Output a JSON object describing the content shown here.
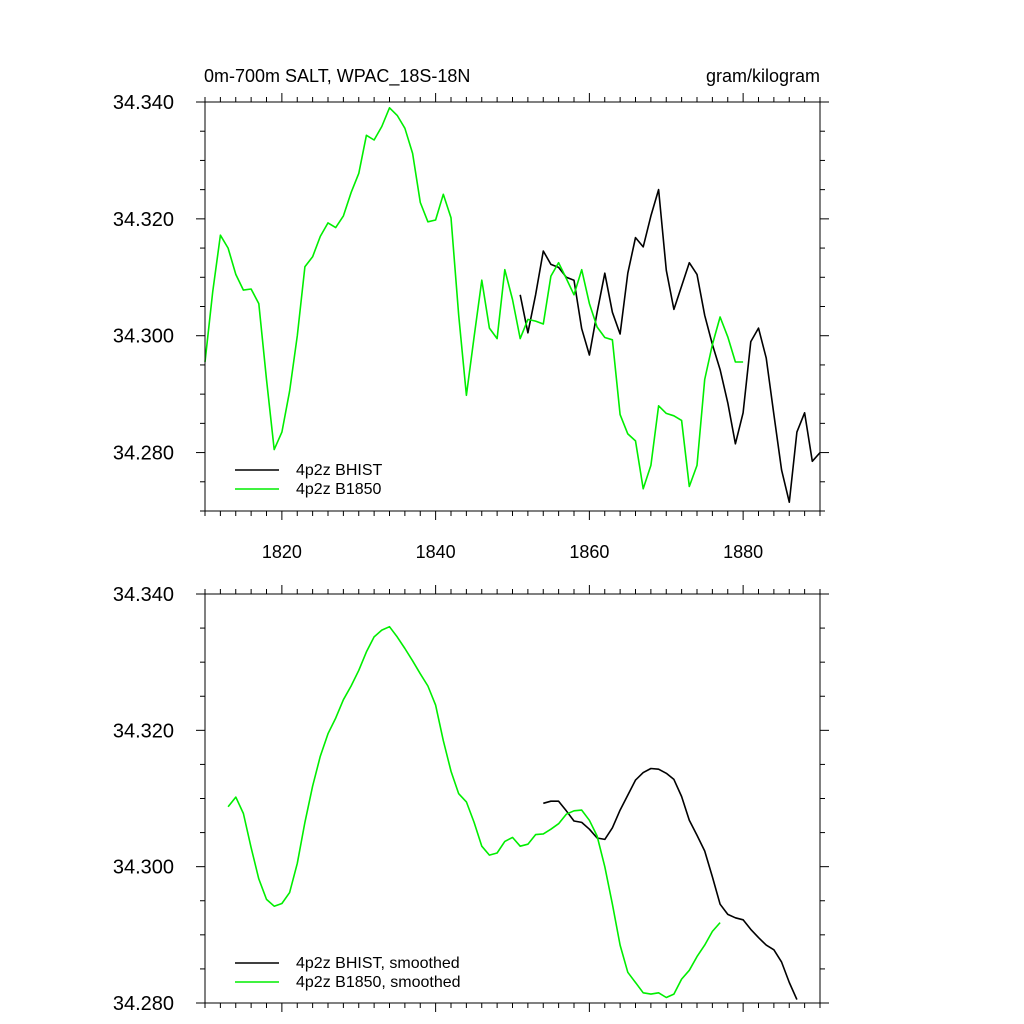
{
  "figure": {
    "title_left": "0m-700m SALT, WPAC_18S-18N",
    "title_right": "gram/kilogram"
  },
  "colors": {
    "bhist": "#000000",
    "b1850": "#00ee00"
  },
  "chart_data": [
    {
      "type": "line",
      "title": "0m-700m SALT, WPAC_18S-18N",
      "units": "gram/kilogram",
      "xlim": [
        1810,
        1890
      ],
      "ylim": [
        34.27,
        34.34
      ],
      "x_ticks": [
        1820,
        1840,
        1860,
        1880
      ],
      "x_tick_labels": [
        "1820",
        "1840",
        "1860",
        "1880"
      ],
      "y_ticks": [
        34.28,
        34.3,
        34.32,
        34.34
      ],
      "y_tick_labels": [
        "34.280",
        "34.300",
        "34.320",
        "34.340"
      ],
      "legend_position": "bottom-left",
      "series": [
        {
          "name": "4p2z BHIST",
          "color": "#000000",
          "x": [
            1851,
            1852,
            1853,
            1854,
            1855,
            1856,
            1857,
            1858,
            1859,
            1860,
            1861,
            1862,
            1863,
            1864,
            1865,
            1866,
            1867,
            1868,
            1869,
            1870,
            1871,
            1872,
            1873,
            1874,
            1875,
            1876,
            1877,
            1878,
            1879,
            1880,
            1881,
            1882,
            1883,
            1884,
            1885,
            1886,
            1887,
            1888,
            1889,
            1890
          ],
          "y": [
            34.307,
            34.3005,
            34.307,
            34.3145,
            34.3122,
            34.3117,
            34.31,
            34.3095,
            34.3012,
            34.2967,
            34.304,
            34.3107,
            34.304,
            34.3003,
            34.3107,
            34.3168,
            34.3152,
            34.3205,
            34.325,
            34.3112,
            34.3045,
            34.3085,
            34.3125,
            34.3105,
            34.3035,
            34.2985,
            34.2942,
            34.2885,
            34.2815,
            34.2868,
            34.299,
            34.3013,
            34.2962,
            34.2865,
            34.277,
            34.2715,
            34.2835,
            34.2868,
            34.2785,
            34.28
          ]
        },
        {
          "name": "4p2z B1850",
          "color": "#00ee00",
          "x": [
            1810,
            1811,
            1812,
            1813,
            1814,
            1815,
            1816,
            1817,
            1818,
            1819,
            1820,
            1821,
            1822,
            1823,
            1824,
            1825,
            1826,
            1827,
            1828,
            1829,
            1830,
            1831,
            1832,
            1833,
            1834,
            1835,
            1836,
            1837,
            1838,
            1839,
            1840,
            1841,
            1842,
            1843,
            1844,
            1845,
            1846,
            1847,
            1848,
            1849,
            1850,
            1851,
            1852,
            1853,
            1854,
            1855,
            1856,
            1857,
            1858,
            1859,
            1860,
            1861,
            1862,
            1863,
            1864,
            1865,
            1866,
            1867,
            1868,
            1869,
            1870,
            1871,
            1872,
            1873,
            1874,
            1875,
            1876,
            1877,
            1878,
            1879,
            1880
          ],
          "y": [
            34.2955,
            34.3075,
            34.3172,
            34.315,
            34.3105,
            34.3078,
            34.308,
            34.3055,
            34.2925,
            34.2805,
            34.2835,
            34.2905,
            34.3,
            34.3118,
            34.3135,
            34.317,
            34.3193,
            34.3185,
            34.3205,
            34.3245,
            34.3278,
            34.3343,
            34.3335,
            34.3358,
            34.339,
            34.3377,
            34.3355,
            34.3312,
            34.3228,
            34.3195,
            34.3198,
            34.3242,
            34.3202,
            34.3035,
            34.2898,
            34.2998,
            34.3095,
            34.3013,
            34.2995,
            34.3113,
            34.3062,
            34.2995,
            34.3028,
            34.3025,
            34.302,
            34.3102,
            34.3125,
            34.3098,
            34.307,
            34.3113,
            34.3055,
            34.3015,
            34.2997,
            34.2993,
            34.2865,
            34.2832,
            34.282,
            34.2738,
            34.2778,
            34.288,
            34.2867,
            34.2863,
            34.2855,
            34.2742,
            34.2778,
            34.2925,
            34.2985,
            34.3032,
            34.2998,
            34.2955,
            34.2955
          ]
        }
      ]
    },
    {
      "type": "line",
      "xlim": [
        1810,
        1890
      ],
      "ylim": [
        34.28,
        34.34
      ],
      "x_ticks": [
        1820,
        1840,
        1860,
        1880
      ],
      "y_ticks": [
        34.28,
        34.3,
        34.32,
        34.34
      ],
      "y_tick_labels": [
        "34.280",
        "34.300",
        "34.320",
        "34.340"
      ],
      "legend_position": "bottom-left",
      "series": [
        {
          "name": "4p2z BHIST, smoothed",
          "color": "#000000",
          "x": [
            1854,
            1855,
            1856,
            1857,
            1858,
            1859,
            1860,
            1861,
            1862,
            1863,
            1864,
            1865,
            1866,
            1867,
            1868,
            1869,
            1870,
            1871,
            1872,
            1873,
            1874,
            1875,
            1876,
            1877,
            1878,
            1879,
            1880,
            1881,
            1882,
            1883,
            1884,
            1885,
            1886,
            1887
          ],
          "y": [
            34.3093,
            34.3096,
            34.3096,
            34.3082,
            34.3067,
            34.3065,
            34.3055,
            34.3042,
            34.304,
            34.3057,
            34.3083,
            34.3105,
            34.3127,
            34.3138,
            34.3144,
            34.3143,
            34.3137,
            34.3128,
            34.3103,
            34.3068,
            34.3046,
            34.3023,
            34.2985,
            34.2945,
            34.293,
            34.2925,
            34.2922,
            34.2908,
            34.2896,
            34.2885,
            34.2878,
            34.286,
            34.283,
            34.2805
          ]
        },
        {
          "name": "4p2z B1850, smoothed",
          "color": "#00ee00",
          "x": [
            1813,
            1814,
            1815,
            1816,
            1817,
            1818,
            1819,
            1820,
            1821,
            1822,
            1823,
            1824,
            1825,
            1826,
            1827,
            1828,
            1829,
            1830,
            1831,
            1832,
            1833,
            1834,
            1835,
            1836,
            1837,
            1838,
            1839,
            1840,
            1841,
            1842,
            1843,
            1844,
            1845,
            1846,
            1847,
            1848,
            1849,
            1850,
            1851,
            1852,
            1853,
            1854,
            1855,
            1856,
            1857,
            1858,
            1859,
            1860,
            1861,
            1862,
            1863,
            1864,
            1865,
            1866,
            1867,
            1868,
            1869,
            1870,
            1871,
            1872,
            1873,
            1874,
            1875,
            1876,
            1877
          ],
          "y": [
            34.3088,
            34.3102,
            34.3078,
            34.3028,
            34.2982,
            34.2952,
            34.2942,
            34.2946,
            34.2962,
            34.3005,
            34.3065,
            34.3118,
            34.3162,
            34.3195,
            34.3218,
            34.3245,
            34.3265,
            34.3288,
            34.3315,
            34.3337,
            34.3347,
            34.3352,
            34.3337,
            34.332,
            34.3302,
            34.3283,
            34.3265,
            34.3237,
            34.3185,
            34.314,
            34.3107,
            34.3095,
            34.3065,
            34.303,
            34.3017,
            34.302,
            34.3037,
            34.3043,
            34.303,
            34.3033,
            34.3047,
            34.3048,
            34.3055,
            34.3063,
            34.3077,
            34.3082,
            34.3083,
            34.3068,
            34.3045,
            34.3,
            34.2945,
            34.2885,
            34.2845,
            34.283,
            34.2815,
            34.2813,
            34.2815,
            34.2808,
            34.2813,
            34.2835,
            34.2848,
            34.2868,
            34.2885,
            34.2905,
            34.2918
          ]
        }
      ]
    }
  ]
}
